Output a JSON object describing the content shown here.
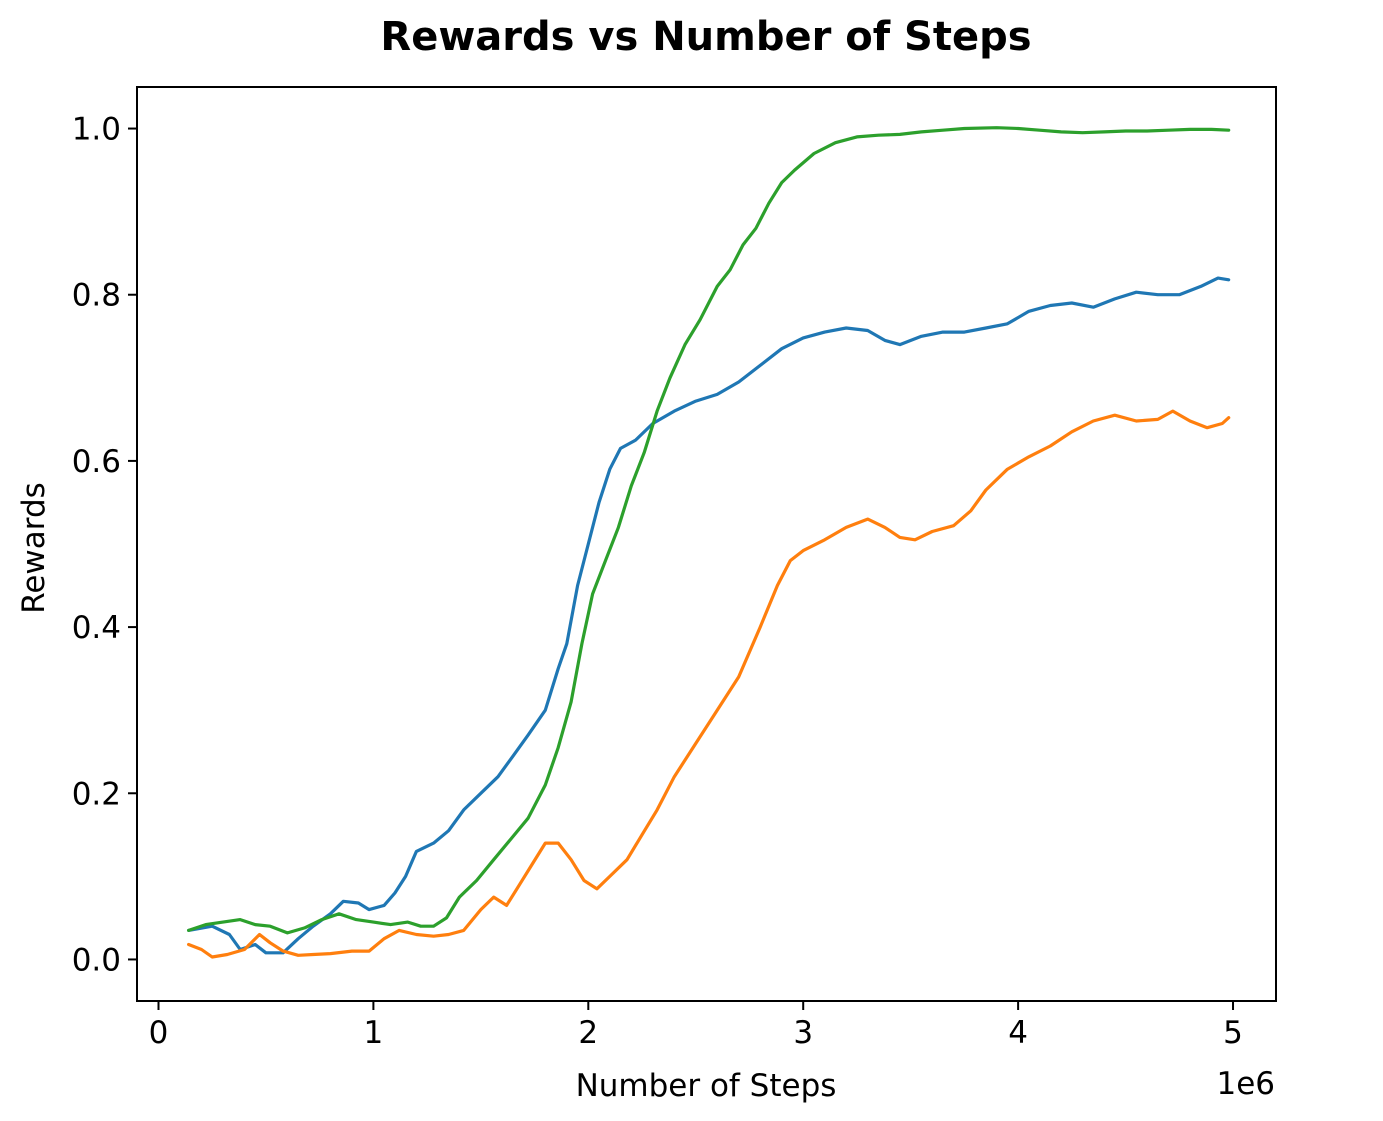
{
  "chart_data": {
    "type": "line",
    "title": "Rewards vs Number of Steps",
    "xlabel": "Number of Steps",
    "ylabel": "Rewards",
    "x_offset_label": "1e6",
    "xlim": [
      -0.1,
      5.2
    ],
    "ylim": [
      -0.05,
      1.05
    ],
    "x_ticks": [
      0,
      1,
      2,
      3,
      4,
      5
    ],
    "x_tick_labels": [
      "0",
      "1",
      "2",
      "3",
      "4",
      "5"
    ],
    "y_ticks": [
      0.0,
      0.2,
      0.4,
      0.6,
      0.8,
      1.0
    ],
    "y_tick_labels": [
      "0.0",
      "0.2",
      "0.4",
      "0.6",
      "0.8",
      "1.0"
    ],
    "grid": false,
    "legend": "none",
    "series": [
      {
        "color": "#1f77b4",
        "points": [
          [
            0.14,
            0.035
          ],
          [
            0.25,
            0.04
          ],
          [
            0.33,
            0.03
          ],
          [
            0.38,
            0.012
          ],
          [
            0.45,
            0.018
          ],
          [
            0.5,
            0.008
          ],
          [
            0.58,
            0.008
          ],
          [
            0.65,
            0.025
          ],
          [
            0.72,
            0.04
          ],
          [
            0.8,
            0.055
          ],
          [
            0.86,
            0.07
          ],
          [
            0.93,
            0.068
          ],
          [
            0.98,
            0.06
          ],
          [
            1.05,
            0.065
          ],
          [
            1.1,
            0.08
          ],
          [
            1.15,
            0.1
          ],
          [
            1.2,
            0.13
          ],
          [
            1.28,
            0.14
          ],
          [
            1.35,
            0.155
          ],
          [
            1.42,
            0.18
          ],
          [
            1.5,
            0.2
          ],
          [
            1.58,
            0.22
          ],
          [
            1.65,
            0.245
          ],
          [
            1.72,
            0.27
          ],
          [
            1.8,
            0.3
          ],
          [
            1.86,
            0.35
          ],
          [
            1.9,
            0.38
          ],
          [
            1.95,
            0.45
          ],
          [
            2.0,
            0.5
          ],
          [
            2.05,
            0.55
          ],
          [
            2.1,
            0.59
          ],
          [
            2.15,
            0.615
          ],
          [
            2.22,
            0.625
          ],
          [
            2.3,
            0.645
          ],
          [
            2.4,
            0.66
          ],
          [
            2.5,
            0.672
          ],
          [
            2.6,
            0.68
          ],
          [
            2.7,
            0.695
          ],
          [
            2.8,
            0.715
          ],
          [
            2.9,
            0.735
          ],
          [
            3.0,
            0.748
          ],
          [
            3.1,
            0.755
          ],
          [
            3.2,
            0.76
          ],
          [
            3.3,
            0.757
          ],
          [
            3.38,
            0.745
          ],
          [
            3.45,
            0.74
          ],
          [
            3.55,
            0.75
          ],
          [
            3.65,
            0.755
          ],
          [
            3.75,
            0.755
          ],
          [
            3.85,
            0.76
          ],
          [
            3.95,
            0.765
          ],
          [
            4.05,
            0.78
          ],
          [
            4.15,
            0.787
          ],
          [
            4.25,
            0.79
          ],
          [
            4.35,
            0.785
          ],
          [
            4.45,
            0.795
          ],
          [
            4.55,
            0.803
          ],
          [
            4.65,
            0.8
          ],
          [
            4.75,
            0.8
          ],
          [
            4.85,
            0.81
          ],
          [
            4.93,
            0.82
          ],
          [
            4.98,
            0.818
          ]
        ]
      },
      {
        "color": "#ff7f0e",
        "points": [
          [
            0.14,
            0.018
          ],
          [
            0.2,
            0.012
          ],
          [
            0.25,
            0.003
          ],
          [
            0.32,
            0.006
          ],
          [
            0.4,
            0.012
          ],
          [
            0.47,
            0.03
          ],
          [
            0.52,
            0.02
          ],
          [
            0.58,
            0.01
          ],
          [
            0.65,
            0.005
          ],
          [
            0.72,
            0.006
          ],
          [
            0.8,
            0.007
          ],
          [
            0.9,
            0.01
          ],
          [
            0.98,
            0.01
          ],
          [
            1.05,
            0.025
          ],
          [
            1.12,
            0.035
          ],
          [
            1.2,
            0.03
          ],
          [
            1.28,
            0.028
          ],
          [
            1.35,
            0.03
          ],
          [
            1.42,
            0.035
          ],
          [
            1.5,
            0.06
          ],
          [
            1.56,
            0.075
          ],
          [
            1.62,
            0.065
          ],
          [
            1.68,
            0.09
          ],
          [
            1.74,
            0.115
          ],
          [
            1.8,
            0.14
          ],
          [
            1.86,
            0.14
          ],
          [
            1.92,
            0.12
          ],
          [
            1.98,
            0.095
          ],
          [
            2.04,
            0.085
          ],
          [
            2.1,
            0.1
          ],
          [
            2.18,
            0.12
          ],
          [
            2.25,
            0.15
          ],
          [
            2.32,
            0.18
          ],
          [
            2.4,
            0.22
          ],
          [
            2.5,
            0.26
          ],
          [
            2.6,
            0.3
          ],
          [
            2.7,
            0.34
          ],
          [
            2.8,
            0.4
          ],
          [
            2.88,
            0.45
          ],
          [
            2.94,
            0.48
          ],
          [
            3.0,
            0.492
          ],
          [
            3.1,
            0.505
          ],
          [
            3.2,
            0.52
          ],
          [
            3.3,
            0.53
          ],
          [
            3.38,
            0.52
          ],
          [
            3.45,
            0.508
          ],
          [
            3.52,
            0.505
          ],
          [
            3.6,
            0.515
          ],
          [
            3.7,
            0.522
          ],
          [
            3.78,
            0.54
          ],
          [
            3.85,
            0.565
          ],
          [
            3.95,
            0.59
          ],
          [
            4.05,
            0.605
          ],
          [
            4.15,
            0.618
          ],
          [
            4.25,
            0.635
          ],
          [
            4.35,
            0.648
          ],
          [
            4.45,
            0.655
          ],
          [
            4.55,
            0.648
          ],
          [
            4.65,
            0.65
          ],
          [
            4.72,
            0.66
          ],
          [
            4.8,
            0.648
          ],
          [
            4.88,
            0.64
          ],
          [
            4.95,
            0.645
          ],
          [
            4.98,
            0.652
          ]
        ]
      },
      {
        "color": "#2ca02c",
        "points": [
          [
            0.14,
            0.035
          ],
          [
            0.22,
            0.042
          ],
          [
            0.3,
            0.045
          ],
          [
            0.38,
            0.048
          ],
          [
            0.45,
            0.042
          ],
          [
            0.52,
            0.04
          ],
          [
            0.6,
            0.032
          ],
          [
            0.68,
            0.038
          ],
          [
            0.76,
            0.048
          ],
          [
            0.84,
            0.055
          ],
          [
            0.92,
            0.048
          ],
          [
            1.0,
            0.045
          ],
          [
            1.08,
            0.042
          ],
          [
            1.16,
            0.045
          ],
          [
            1.22,
            0.04
          ],
          [
            1.28,
            0.04
          ],
          [
            1.34,
            0.05
          ],
          [
            1.4,
            0.075
          ],
          [
            1.48,
            0.095
          ],
          [
            1.56,
            0.12
          ],
          [
            1.64,
            0.145
          ],
          [
            1.72,
            0.17
          ],
          [
            1.8,
            0.21
          ],
          [
            1.86,
            0.255
          ],
          [
            1.92,
            0.31
          ],
          [
            1.97,
            0.38
          ],
          [
            2.02,
            0.44
          ],
          [
            2.08,
            0.48
          ],
          [
            2.14,
            0.52
          ],
          [
            2.2,
            0.57
          ],
          [
            2.26,
            0.61
          ],
          [
            2.32,
            0.66
          ],
          [
            2.38,
            0.7
          ],
          [
            2.45,
            0.74
          ],
          [
            2.52,
            0.77
          ],
          [
            2.6,
            0.81
          ],
          [
            2.66,
            0.83
          ],
          [
            2.72,
            0.86
          ],
          [
            2.78,
            0.88
          ],
          [
            2.84,
            0.91
          ],
          [
            2.9,
            0.935
          ],
          [
            2.96,
            0.95
          ],
          [
            3.05,
            0.97
          ],
          [
            3.15,
            0.983
          ],
          [
            3.25,
            0.99
          ],
          [
            3.35,
            0.992
          ],
          [
            3.45,
            0.993
          ],
          [
            3.55,
            0.996
          ],
          [
            3.65,
            0.998
          ],
          [
            3.75,
            1.0
          ],
          [
            3.9,
            1.001
          ],
          [
            4.0,
            1.0
          ],
          [
            4.1,
            0.998
          ],
          [
            4.2,
            0.996
          ],
          [
            4.3,
            0.995
          ],
          [
            4.4,
            0.996
          ],
          [
            4.5,
            0.997
          ],
          [
            4.6,
            0.997
          ],
          [
            4.7,
            0.998
          ],
          [
            4.8,
            0.999
          ],
          [
            4.9,
            0.999
          ],
          [
            4.98,
            0.998
          ]
        ]
      }
    ]
  }
}
